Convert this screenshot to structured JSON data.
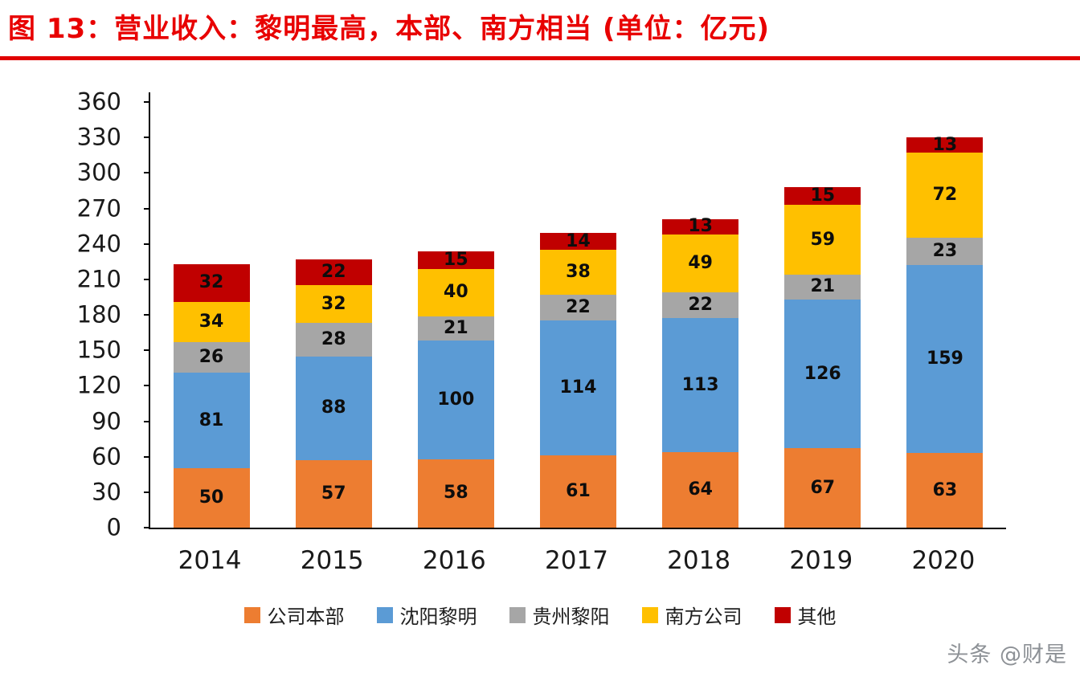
{
  "title": "图 13：营业收入：黎明最高，本部、南方相当 (单位：亿元)",
  "watermark": "头条 @财是",
  "colors": {
    "title_red": "#e80000",
    "divider_red": "#e00000",
    "axis_black": "#000000"
  },
  "chart_data": {
    "type": "bar",
    "stacked": true,
    "title": "图 13：营业收入：黎明最高，本部、南方相当 (单位：亿元)",
    "categories": [
      "2014",
      "2015",
      "2016",
      "2017",
      "2018",
      "2019",
      "2020"
    ],
    "series": [
      {
        "name": "公司本部",
        "color": "#ED7D31",
        "values": [
          50,
          57,
          58,
          61,
          64,
          67,
          63
        ]
      },
      {
        "name": "沈阳黎明",
        "color": "#5B9BD5",
        "values": [
          81,
          88,
          100,
          114,
          113,
          126,
          159
        ]
      },
      {
        "name": "贵州黎阳",
        "color": "#A6A6A6",
        "values": [
          26,
          28,
          21,
          22,
          22,
          21,
          23
        ]
      },
      {
        "name": "南方公司",
        "color": "#FFC000",
        "values": [
          34,
          32,
          40,
          38,
          49,
          59,
          72
        ]
      },
      {
        "name": "其他",
        "color": "#C00000",
        "values": [
          32,
          22,
          15,
          14,
          13,
          15,
          13
        ]
      }
    ],
    "ylim": [
      0,
      360
    ],
    "ytick_step": 30,
    "xlabel": "",
    "ylabel": "",
    "grid": false,
    "legend_position": "bottom",
    "data_labels": true
  }
}
